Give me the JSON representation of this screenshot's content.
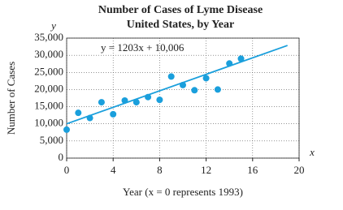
{
  "chart_data": {
    "type": "scatter",
    "title": "Number of Cases of Lyme Disease",
    "subtitle": "United States, by Year",
    "y_axis_letter": "y",
    "x_axis_letter": "x",
    "ylabel": "Number of Cases",
    "xlabel": "Year (x = 0 represents 1993)",
    "annotation": "y = 1203x + 10,006",
    "grid": true,
    "xlim": [
      0,
      20
    ],
    "xticks": [
      0,
      4,
      8,
      12,
      16,
      20
    ],
    "ylim": [
      0,
      35000
    ],
    "yticks": [
      0,
      {
        "value": 5000,
        "label": "5,000"
      },
      {
        "value": 10000,
        "label": "10,000"
      },
      {
        "value": 15000,
        "label": "15,000"
      },
      {
        "value": 20000,
        "label": "20,000"
      },
      {
        "value": 25000,
        "label": "25,000"
      },
      {
        "value": 30000,
        "label": "30,000"
      },
      {
        "value": 35000,
        "label": "35,000"
      }
    ],
    "series": [
      {
        "color": "#1a9fdc",
        "x": [
          0,
          1,
          2,
          3,
          4,
          5,
          6,
          7,
          8,
          9,
          10,
          11,
          12,
          13,
          14,
          15
        ],
        "values": [
          8300,
          13200,
          11700,
          16300,
          12800,
          16800,
          16300,
          17800,
          17000,
          23800,
          21300,
          19800,
          23300,
          20000,
          27600,
          29000
        ]
      }
    ],
    "trend_line": {
      "color": "#1a9fdc",
      "x": [
        0,
        19
      ],
      "values": [
        10006,
        32863
      ]
    }
  }
}
